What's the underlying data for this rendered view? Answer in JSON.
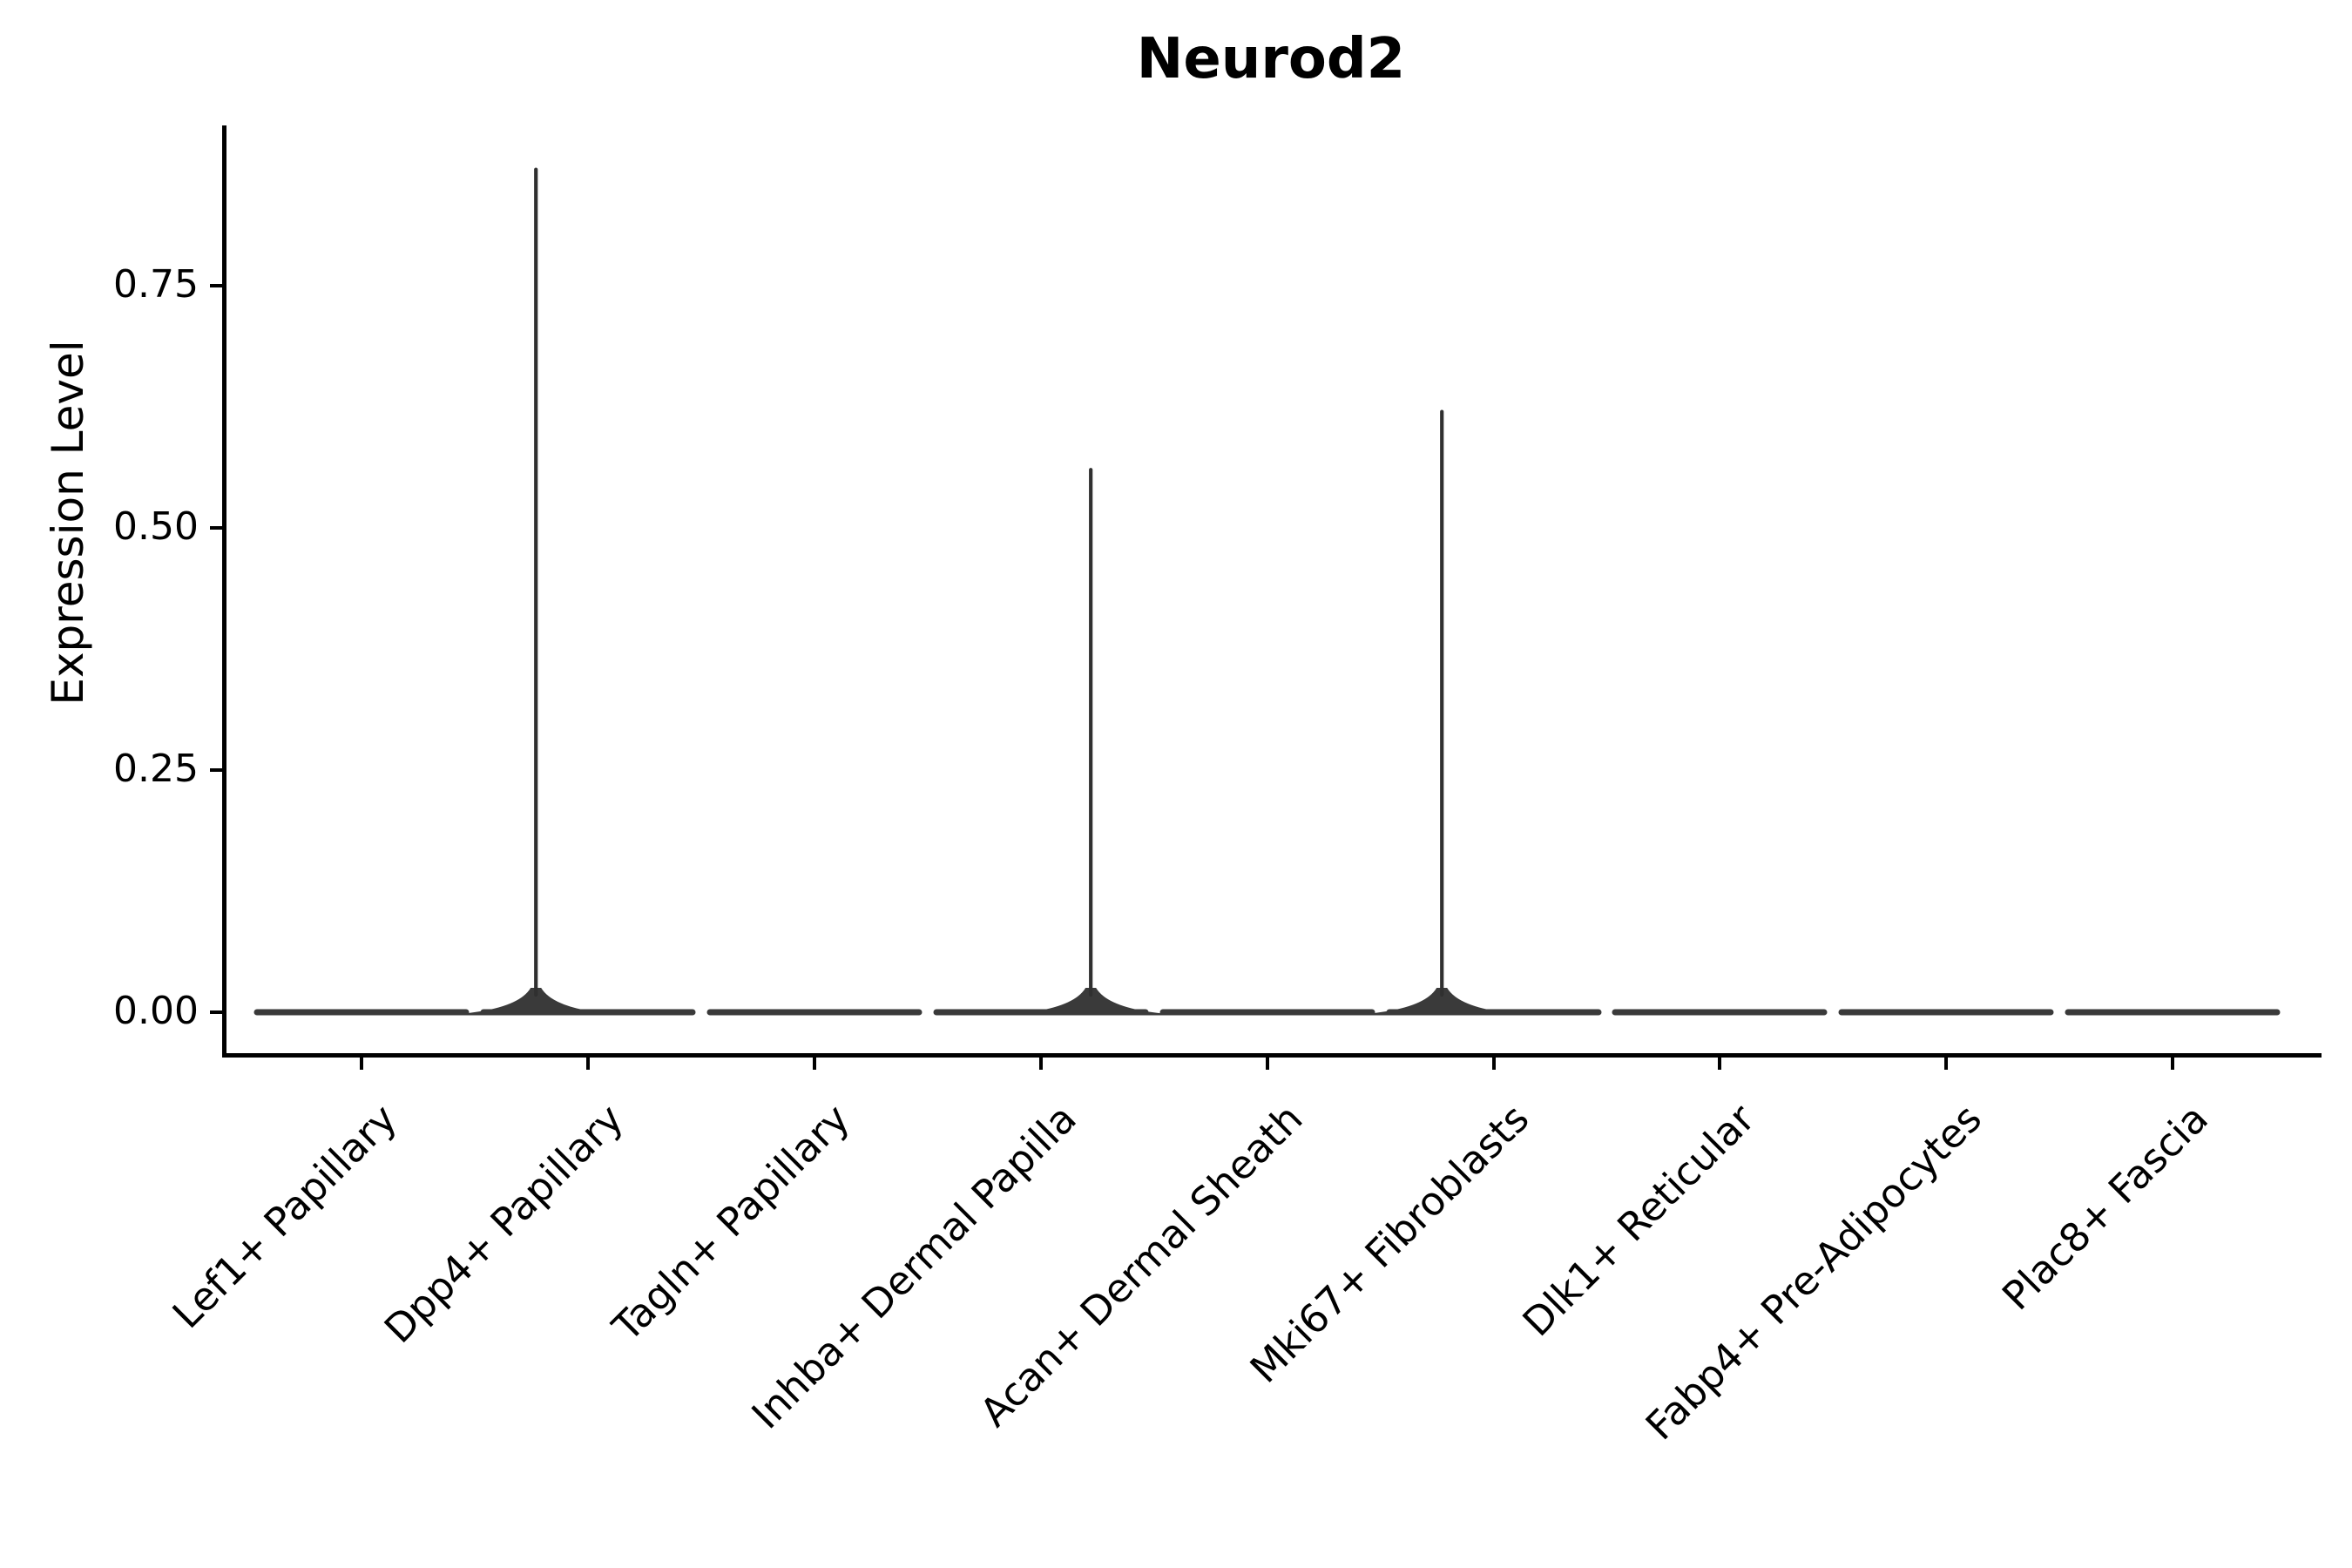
{
  "chart_data": {
    "type": "violin",
    "title": "Neurod2",
    "xlabel": "",
    "ylabel": "Expression Level",
    "ylim": [
      -0.04,
      0.92
    ],
    "grid": "off",
    "legend": "none",
    "ytick_values": [
      0.0,
      0.25,
      0.5,
      0.75
    ],
    "ytick_labels": [
      "0.00",
      "0.25",
      "0.50",
      "0.75"
    ],
    "categories": [
      "Lef1+ Papillary",
      "Dpp4+ Papillary",
      "Tagln+ Papillary",
      "Inhba+ Dermal Papilla",
      "Acan+ Dermal Sheath",
      "Mki67+ Fibroblasts",
      "Dlk1+ Reticular",
      "Fabp4+ Pre-Adipocytes",
      "Plac8+ Fascia"
    ],
    "violins": [
      {
        "category": "Lef1+ Papillary",
        "bulk_value": 0,
        "max_value": 0,
        "spike_offset_frac": 0
      },
      {
        "category": "Dpp4+ Papillary",
        "bulk_value": 0,
        "max_value": 0.87,
        "spike_offset_frac": -0.23
      },
      {
        "category": "Tagln+ Papillary",
        "bulk_value": 0,
        "max_value": 0,
        "spike_offset_frac": 0
      },
      {
        "category": "Inhba+ Dermal Papilla",
        "bulk_value": 0,
        "max_value": 0.56,
        "spike_offset_frac": 0.22
      },
      {
        "category": "Acan+ Dermal Sheath",
        "bulk_value": 0,
        "max_value": 0,
        "spike_offset_frac": 0
      },
      {
        "category": "Mki67+ Fibroblasts",
        "bulk_value": 0,
        "max_value": 0.62,
        "spike_offset_frac": -0.23
      },
      {
        "category": "Dlk1+ Reticular",
        "bulk_value": 0,
        "max_value": 0,
        "spike_offset_frac": 0
      },
      {
        "category": "Fabp4+ Pre-Adipocytes",
        "bulk_value": 0,
        "max_value": 0,
        "spike_offset_frac": 0
      },
      {
        "category": "Plac8+ Fascia",
        "bulk_value": 0,
        "max_value": 0,
        "spike_offset_frac": 0
      }
    ],
    "colors": {
      "axis": "#000000",
      "text": "#000000",
      "violin_stroke": "#3a3a3a",
      "background": "#ffffff"
    }
  }
}
